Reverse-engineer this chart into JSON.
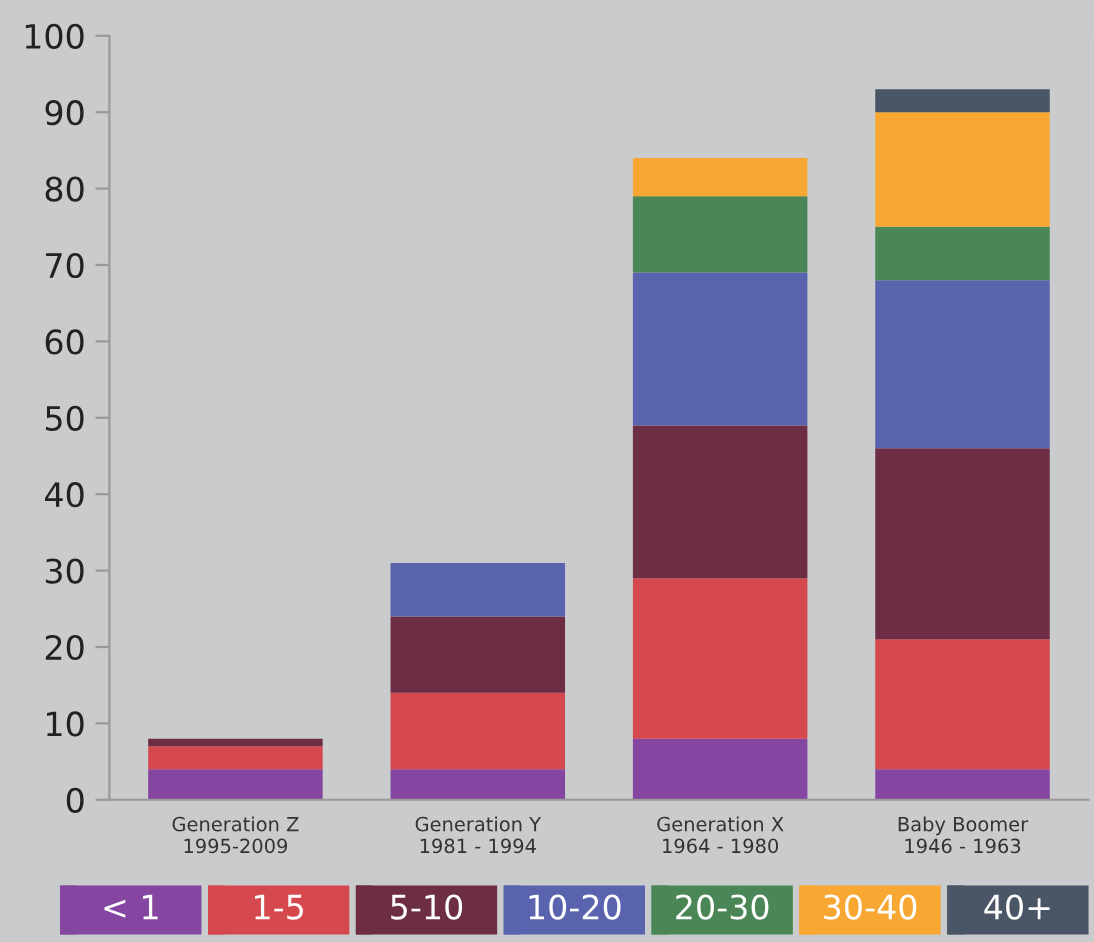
{
  "chart_data": {
    "type": "bar",
    "stacked": true,
    "categories": [
      "Generation Z\n1995-2009",
      "Generation Y\n1981 - 1994",
      "Generation X\n1964 - 1980",
      "Baby Boomer\n1946 - 1963"
    ],
    "series": [
      {
        "name": "< 1",
        "color": "#8446a0",
        "values": [
          4,
          4,
          8,
          4
        ]
      },
      {
        "name": "1-5",
        "color": "#d5484d",
        "values": [
          3,
          10,
          21,
          17
        ]
      },
      {
        "name": "5-10",
        "color": "#6d2e45",
        "values": [
          1,
          10,
          20,
          25
        ]
      },
      {
        "name": "10-20",
        "color": "#5a63ae",
        "values": [
          null,
          7,
          20,
          22
        ]
      },
      {
        "name": "20-30",
        "color": "#4a8656",
        "values": [
          null,
          null,
          10,
          7
        ]
      },
      {
        "name": "30-40",
        "color": "#f8a832",
        "values": [
          null,
          null,
          5,
          15
        ]
      },
      {
        "name": "40+",
        "color": "#4a5565",
        "values": [
          null,
          null,
          null,
          3
        ]
      }
    ],
    "ylim": [
      0,
      100
    ],
    "yticks": [
      0,
      10,
      20,
      30,
      40,
      50,
      60,
      70,
      80,
      90,
      100
    ],
    "grid": false,
    "legend": "bottom"
  }
}
